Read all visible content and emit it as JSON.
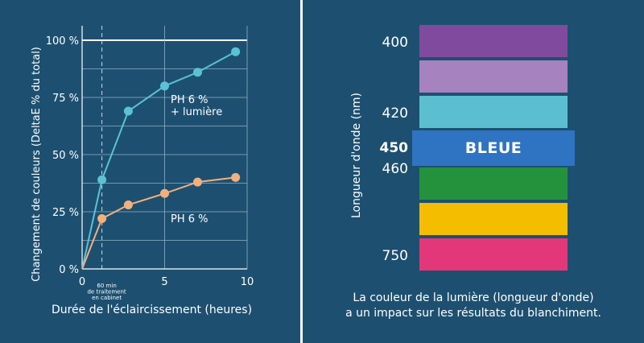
{
  "chart_data": {
    "type": "line",
    "xlabel": "Durée de l'éclaircissement (heures)",
    "ylabel": "Changement de couleurs (DeltaE % du total)",
    "xlim": [
      0,
      10
    ],
    "ylim": [
      0,
      100
    ],
    "x_ticks": [
      "0",
      "5",
      "10"
    ],
    "y_ticks": [
      "0 %",
      "25 %",
      "50 %",
      "75 %",
      "100 %"
    ],
    "grid": true,
    "series": [
      {
        "name": "PH 6 % + lumière",
        "color": "#5bc2d6",
        "x": [
          0,
          1.2,
          2.8,
          5,
          7,
          9.3
        ],
        "y": [
          0,
          39,
          69,
          80,
          86,
          95
        ]
      },
      {
        "name": "PH 6 %",
        "color": "#f2b07d",
        "x": [
          0,
          1.2,
          2.8,
          5,
          7,
          9.3
        ],
        "y": [
          0,
          22,
          28,
          33,
          38,
          40
        ]
      }
    ],
    "annotation": {
      "x": 1.2,
      "text_lines": [
        "60 min",
        "de traitement",
        "en cabinet"
      ]
    }
  },
  "spectrum": {
    "axis_label": "Longueur d'onde (nm)",
    "bands": [
      {
        "color": "#804b9e",
        "label": ""
      },
      {
        "color": "#a682be",
        "label": ""
      },
      {
        "color": "#5bbfd1",
        "label": ""
      },
      {
        "color": "#2f74c3",
        "label": "BLEUE"
      },
      {
        "color": "#24923d",
        "label": ""
      },
      {
        "color": "#f5bd00",
        "label": ""
      },
      {
        "color": "#e2387a",
        "label": ""
      }
    ],
    "wavelengths": [
      "400",
      "420",
      "450",
      "460",
      "750"
    ],
    "caption_line1": "La couleur de la lumière (longueur d'onde)",
    "caption_line2": "a un impact sur les résultats du blanchiment."
  }
}
